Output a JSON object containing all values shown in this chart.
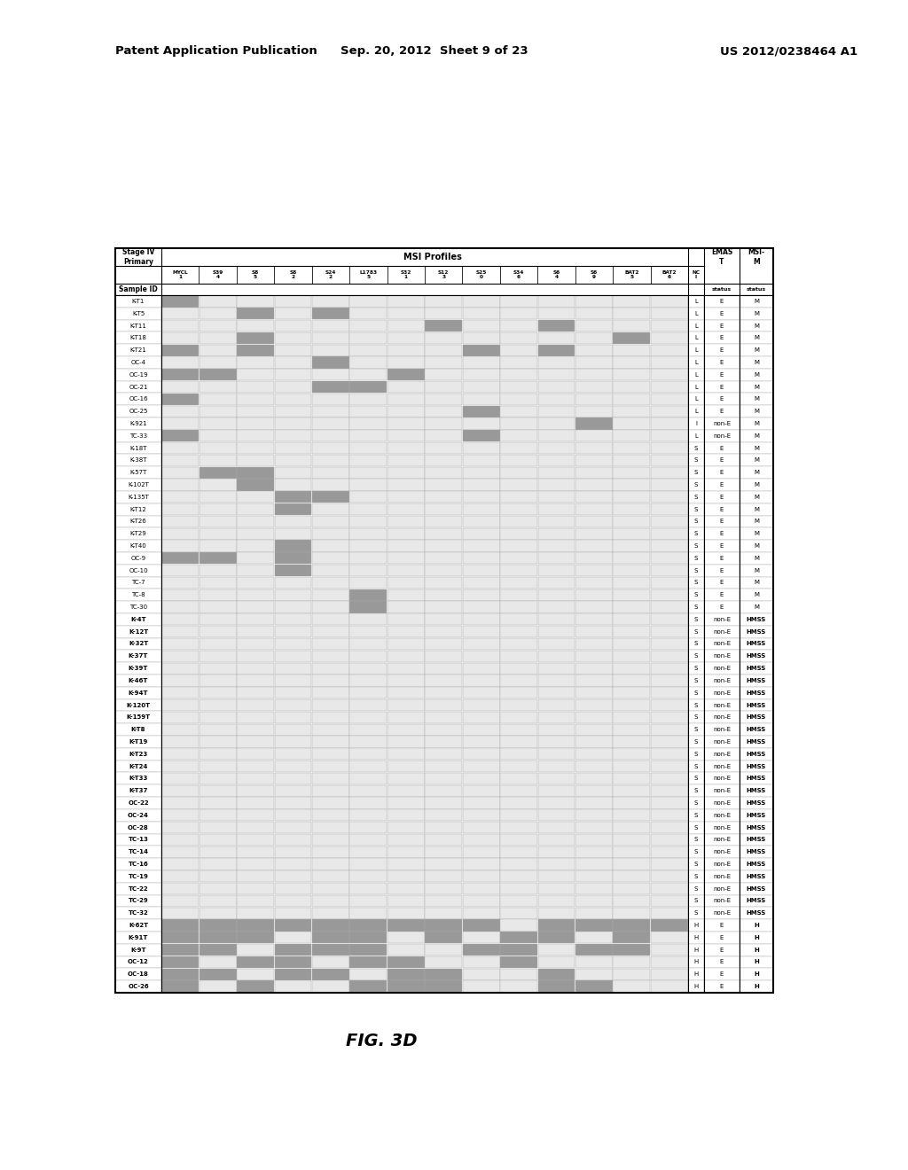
{
  "header_line1_left": "Patent Application Publication",
  "header_line1_mid": "Sep. 20, 2012  Sheet 9 of 23",
  "header_line1_right": "US 2012/0238464 A1",
  "figure_label": "FIG. 3D",
  "col_headers": [
    "MYCL\n1",
    "S39\n4",
    "S8\n5",
    "S8\n2",
    "S24\n2",
    "L1783\n5",
    "S32\n1",
    "S12\n3",
    "S25\n0",
    "S34\n6",
    "S6\n4",
    "S6\n9",
    "BAT2\n5",
    "BAT2\n6"
  ],
  "rows": [
    {
      "id": "K-T1",
      "vals": [
        1,
        0,
        0,
        0,
        0,
        0,
        0,
        0,
        0,
        0,
        0,
        0,
        0,
        0
      ],
      "nc": "L",
      "emast": "E",
      "msim": "M",
      "bold": false
    },
    {
      "id": "K-T5",
      "vals": [
        0,
        0,
        1,
        0,
        1,
        0,
        0,
        0,
        0,
        0,
        0,
        0,
        0,
        0
      ],
      "nc": "L",
      "emast": "E",
      "msim": "M",
      "bold": false
    },
    {
      "id": "K-T11",
      "vals": [
        0,
        0,
        0,
        0,
        0,
        0,
        0,
        1,
        0,
        0,
        1,
        0,
        0,
        0
      ],
      "nc": "L",
      "emast": "E",
      "msim": "M",
      "bold": false
    },
    {
      "id": "K-T18",
      "vals": [
        0,
        0,
        1,
        0,
        0,
        0,
        0,
        0,
        0,
        0,
        0,
        0,
        1,
        0
      ],
      "nc": "L",
      "emast": "E",
      "msim": "M",
      "bold": false
    },
    {
      "id": "K-T21",
      "vals": [
        1,
        0,
        1,
        0,
        0,
        0,
        0,
        0,
        1,
        0,
        1,
        0,
        0,
        0
      ],
      "nc": "L",
      "emast": "E",
      "msim": "M",
      "bold": false
    },
    {
      "id": "OC-4",
      "vals": [
        0,
        0,
        0,
        0,
        1,
        0,
        0,
        0,
        0,
        0,
        0,
        0,
        0,
        0
      ],
      "nc": "L",
      "emast": "E",
      "msim": "M",
      "bold": false
    },
    {
      "id": "OC-19",
      "vals": [
        1,
        1,
        0,
        0,
        0,
        0,
        1,
        0,
        0,
        0,
        0,
        0,
        0,
        0
      ],
      "nc": "L",
      "emast": "E",
      "msim": "M",
      "bold": false
    },
    {
      "id": "OC-21",
      "vals": [
        0,
        0,
        0,
        0,
        1,
        1,
        0,
        0,
        0,
        0,
        0,
        0,
        0,
        0
      ],
      "nc": "L",
      "emast": "E",
      "msim": "M",
      "bold": false
    },
    {
      "id": "OC-16",
      "vals": [
        1,
        0,
        0,
        0,
        0,
        0,
        0,
        0,
        0,
        0,
        0,
        0,
        0,
        0
      ],
      "nc": "L",
      "emast": "E",
      "msim": "M",
      "bold": false
    },
    {
      "id": "OC-25",
      "vals": [
        0,
        0,
        0,
        0,
        0,
        0,
        0,
        0,
        1,
        0,
        0,
        0,
        0,
        0
      ],
      "nc": "L",
      "emast": "E",
      "msim": "M",
      "bold": false
    },
    {
      "id": "K-921",
      "vals": [
        0,
        0,
        0,
        0,
        0,
        0,
        0,
        0,
        0,
        0,
        0,
        1,
        0,
        0
      ],
      "nc": "I",
      "emast": "non-E",
      "msim": "M",
      "bold": false
    },
    {
      "id": "TC-33",
      "vals": [
        1,
        0,
        0,
        0,
        0,
        0,
        0,
        0,
        1,
        0,
        0,
        0,
        0,
        0
      ],
      "nc": "L",
      "emast": "non-E",
      "msim": "M",
      "bold": false
    },
    {
      "id": "K-18T",
      "vals": [
        0,
        0,
        0,
        0,
        0,
        0,
        0,
        0,
        0,
        0,
        0,
        0,
        0,
        0
      ],
      "nc": "S",
      "emast": "E",
      "msim": "M",
      "bold": false
    },
    {
      "id": "K-38T",
      "vals": [
        0,
        0,
        0,
        0,
        0,
        0,
        0,
        0,
        0,
        0,
        0,
        0,
        0,
        0
      ],
      "nc": "S",
      "emast": "E",
      "msim": "M",
      "bold": false
    },
    {
      "id": "K-57T",
      "vals": [
        0,
        1,
        1,
        0,
        0,
        0,
        0,
        0,
        0,
        0,
        0,
        0,
        0,
        0
      ],
      "nc": "S",
      "emast": "E",
      "msim": "M",
      "bold": false
    },
    {
      "id": "K-102T",
      "vals": [
        0,
        0,
        1,
        0,
        0,
        0,
        0,
        0,
        0,
        0,
        0,
        0,
        0,
        0
      ],
      "nc": "S",
      "emast": "E",
      "msim": "M",
      "bold": false
    },
    {
      "id": "K-135T",
      "vals": [
        0,
        0,
        0,
        1,
        1,
        0,
        0,
        0,
        0,
        0,
        0,
        0,
        0,
        0
      ],
      "nc": "S",
      "emast": "E",
      "msim": "M",
      "bold": false
    },
    {
      "id": "K-T12",
      "vals": [
        0,
        0,
        0,
        1,
        0,
        0,
        0,
        0,
        0,
        0,
        0,
        0,
        0,
        0
      ],
      "nc": "S",
      "emast": "E",
      "msim": "M",
      "bold": false
    },
    {
      "id": "K-T26",
      "vals": [
        0,
        0,
        0,
        0,
        0,
        0,
        0,
        0,
        0,
        0,
        0,
        0,
        0,
        0
      ],
      "nc": "S",
      "emast": "E",
      "msim": "M",
      "bold": false
    },
    {
      "id": "K-T29",
      "vals": [
        0,
        0,
        0,
        0,
        0,
        0,
        0,
        0,
        0,
        0,
        0,
        0,
        0,
        0
      ],
      "nc": "S",
      "emast": "E",
      "msim": "M",
      "bold": false
    },
    {
      "id": "K-T40",
      "vals": [
        0,
        0,
        0,
        1,
        0,
        0,
        0,
        0,
        0,
        0,
        0,
        0,
        0,
        0
      ],
      "nc": "S",
      "emast": "E",
      "msim": "M",
      "bold": false
    },
    {
      "id": "OC-9",
      "vals": [
        1,
        1,
        0,
        1,
        0,
        0,
        0,
        0,
        0,
        0,
        0,
        0,
        0,
        0
      ],
      "nc": "S",
      "emast": "E",
      "msim": "M",
      "bold": false
    },
    {
      "id": "OC-10",
      "vals": [
        0,
        0,
        0,
        1,
        0,
        0,
        0,
        0,
        0,
        0,
        0,
        0,
        0,
        0
      ],
      "nc": "S",
      "emast": "E",
      "msim": "M",
      "bold": false
    },
    {
      "id": "TC-7",
      "vals": [
        0,
        0,
        0,
        0,
        0,
        0,
        0,
        0,
        0,
        0,
        0,
        0,
        0,
        0
      ],
      "nc": "S",
      "emast": "E",
      "msim": "M",
      "bold": false
    },
    {
      "id": "TC-8",
      "vals": [
        0,
        0,
        0,
        0,
        0,
        1,
        0,
        0,
        0,
        0,
        0,
        0,
        0,
        0
      ],
      "nc": "S",
      "emast": "E",
      "msim": "M",
      "bold": false
    },
    {
      "id": "TC-30",
      "vals": [
        0,
        0,
        0,
        0,
        0,
        1,
        0,
        0,
        0,
        0,
        0,
        0,
        0,
        0
      ],
      "nc": "S",
      "emast": "E",
      "msim": "M",
      "bold": false
    },
    {
      "id": "K-4T",
      "vals": [
        0,
        0,
        0,
        0,
        0,
        0,
        0,
        0,
        0,
        0,
        0,
        0,
        0,
        0
      ],
      "nc": "S",
      "emast": "non-E",
      "msim": "HMSS",
      "bold": true
    },
    {
      "id": "K-12T",
      "vals": [
        0,
        0,
        0,
        0,
        0,
        0,
        0,
        0,
        0,
        0,
        0,
        0,
        0,
        0
      ],
      "nc": "S",
      "emast": "non-E",
      "msim": "HMSS",
      "bold": true
    },
    {
      "id": "K-32T",
      "vals": [
        0,
        0,
        0,
        0,
        0,
        0,
        0,
        0,
        0,
        0,
        0,
        0,
        0,
        0
      ],
      "nc": "S",
      "emast": "non-E",
      "msim": "HMSS",
      "bold": true
    },
    {
      "id": "K-37T",
      "vals": [
        0,
        0,
        0,
        0,
        0,
        0,
        0,
        0,
        0,
        0,
        0,
        0,
        0,
        0
      ],
      "nc": "S",
      "emast": "non-E",
      "msim": "HMSS",
      "bold": true
    },
    {
      "id": "K-39T",
      "vals": [
        0,
        0,
        0,
        0,
        0,
        0,
        0,
        0,
        0,
        0,
        0,
        0,
        0,
        0
      ],
      "nc": "S",
      "emast": "non-E",
      "msim": "HMSS",
      "bold": true
    },
    {
      "id": "K-46T",
      "vals": [
        0,
        0,
        0,
        0,
        0,
        0,
        0,
        0,
        0,
        0,
        0,
        0,
        0,
        0
      ],
      "nc": "S",
      "emast": "non-E",
      "msim": "HMSS",
      "bold": true
    },
    {
      "id": "K-94T",
      "vals": [
        0,
        0,
        0,
        0,
        0,
        0,
        0,
        0,
        0,
        0,
        0,
        0,
        0,
        0
      ],
      "nc": "S",
      "emast": "non-E",
      "msim": "HMSS",
      "bold": true
    },
    {
      "id": "K-120T",
      "vals": [
        0,
        0,
        0,
        0,
        0,
        0,
        0,
        0,
        0,
        0,
        0,
        0,
        0,
        0
      ],
      "nc": "S",
      "emast": "non-E",
      "msim": "HMSS",
      "bold": true
    },
    {
      "id": "K-159T",
      "vals": [
        0,
        0,
        0,
        0,
        0,
        0,
        0,
        0,
        0,
        0,
        0,
        0,
        0,
        0
      ],
      "nc": "S",
      "emast": "non-E",
      "msim": "HMSS",
      "bold": true
    },
    {
      "id": "K-T8",
      "vals": [
        0,
        0,
        0,
        0,
        0,
        0,
        0,
        0,
        0,
        0,
        0,
        0,
        0,
        0
      ],
      "nc": "S",
      "emast": "non-E",
      "msim": "HMSS",
      "bold": true
    },
    {
      "id": "K-T19",
      "vals": [
        0,
        0,
        0,
        0,
        0,
        0,
        0,
        0,
        0,
        0,
        0,
        0,
        0,
        0
      ],
      "nc": "S",
      "emast": "non-E",
      "msim": "HMSS",
      "bold": true
    },
    {
      "id": "K-T23",
      "vals": [
        0,
        0,
        0,
        0,
        0,
        0,
        0,
        0,
        0,
        0,
        0,
        0,
        0,
        0
      ],
      "nc": "S",
      "emast": "non-E",
      "msim": "HMSS",
      "bold": true
    },
    {
      "id": "K-T24",
      "vals": [
        0,
        0,
        0,
        0,
        0,
        0,
        0,
        0,
        0,
        0,
        0,
        0,
        0,
        0
      ],
      "nc": "S",
      "emast": "non-E",
      "msim": "HMSS",
      "bold": true
    },
    {
      "id": "K-T33",
      "vals": [
        0,
        0,
        0,
        0,
        0,
        0,
        0,
        0,
        0,
        0,
        0,
        0,
        0,
        0
      ],
      "nc": "S",
      "emast": "non-E",
      "msim": "HMSS",
      "bold": true
    },
    {
      "id": "K-T37",
      "vals": [
        0,
        0,
        0,
        0,
        0,
        0,
        0,
        0,
        0,
        0,
        0,
        0,
        0,
        0
      ],
      "nc": "S",
      "emast": "non-E",
      "msim": "HMSS",
      "bold": true
    },
    {
      "id": "OC-22",
      "vals": [
        0,
        0,
        0,
        0,
        0,
        0,
        0,
        0,
        0,
        0,
        0,
        0,
        0,
        0
      ],
      "nc": "S",
      "emast": "non-E",
      "msim": "HMSS",
      "bold": true
    },
    {
      "id": "OC-24",
      "vals": [
        0,
        0,
        0,
        0,
        0,
        0,
        0,
        0,
        0,
        0,
        0,
        0,
        0,
        0
      ],
      "nc": "S",
      "emast": "non-E",
      "msim": "HMSS",
      "bold": true
    },
    {
      "id": "OC-28",
      "vals": [
        0,
        0,
        0,
        0,
        0,
        0,
        0,
        0,
        0,
        0,
        0,
        0,
        0,
        0
      ],
      "nc": "S",
      "emast": "non-E",
      "msim": "HMSS",
      "bold": true
    },
    {
      "id": "TC-13",
      "vals": [
        0,
        0,
        0,
        0,
        0,
        0,
        0,
        0,
        0,
        0,
        0,
        0,
        0,
        0
      ],
      "nc": "S",
      "emast": "non-E",
      "msim": "HMSS",
      "bold": true
    },
    {
      "id": "TC-14",
      "vals": [
        0,
        0,
        0,
        0,
        0,
        0,
        0,
        0,
        0,
        0,
        0,
        0,
        0,
        0
      ],
      "nc": "S",
      "emast": "non-E",
      "msim": "HMSS",
      "bold": true
    },
    {
      "id": "TC-16",
      "vals": [
        0,
        0,
        0,
        0,
        0,
        0,
        0,
        0,
        0,
        0,
        0,
        0,
        0,
        0
      ],
      "nc": "S",
      "emast": "non-E",
      "msim": "HMSS",
      "bold": true
    },
    {
      "id": "TC-19",
      "vals": [
        0,
        0,
        0,
        0,
        0,
        0,
        0,
        0,
        0,
        0,
        0,
        0,
        0,
        0
      ],
      "nc": "S",
      "emast": "non-E",
      "msim": "HMSS",
      "bold": true
    },
    {
      "id": "TC-22",
      "vals": [
        0,
        0,
        0,
        0,
        0,
        0,
        0,
        0,
        0,
        0,
        0,
        0,
        0,
        0
      ],
      "nc": "S",
      "emast": "non-E",
      "msim": "HMSS",
      "bold": true
    },
    {
      "id": "TC-29",
      "vals": [
        0,
        0,
        0,
        0,
        0,
        0,
        0,
        0,
        0,
        0,
        0,
        0,
        0,
        0
      ],
      "nc": "S",
      "emast": "non-E",
      "msim": "HMSS",
      "bold": true
    },
    {
      "id": "TC-32",
      "vals": [
        0,
        0,
        0,
        0,
        0,
        0,
        0,
        0,
        0,
        0,
        0,
        0,
        0,
        0
      ],
      "nc": "S",
      "emast": "non-E",
      "msim": "HMSS",
      "bold": true
    },
    {
      "id": "K-62T",
      "vals": [
        1,
        1,
        1,
        1,
        1,
        1,
        1,
        1,
        1,
        0,
        1,
        1,
        1,
        1
      ],
      "nc": "H",
      "emast": "E",
      "msim": "H",
      "bold": true
    },
    {
      "id": "K-91T",
      "vals": [
        1,
        1,
        1,
        0,
        1,
        1,
        0,
        1,
        0,
        1,
        1,
        0,
        1,
        0
      ],
      "nc": "H",
      "emast": "E",
      "msim": "H",
      "bold": true
    },
    {
      "id": "K-9T",
      "vals": [
        1,
        1,
        0,
        1,
        1,
        1,
        0,
        0,
        1,
        1,
        0,
        1,
        1,
        0
      ],
      "nc": "H",
      "emast": "E",
      "msim": "H",
      "bold": true
    },
    {
      "id": "OC-12",
      "vals": [
        1,
        0,
        1,
        1,
        0,
        1,
        1,
        0,
        0,
        1,
        0,
        0,
        0,
        0
      ],
      "nc": "H",
      "emast": "E",
      "msim": "H",
      "bold": true
    },
    {
      "id": "OC-18",
      "vals": [
        1,
        1,
        0,
        1,
        1,
        0,
        1,
        1,
        0,
        0,
        1,
        0,
        0,
        0
      ],
      "nc": "H",
      "emast": "E",
      "msim": "H",
      "bold": true
    },
    {
      "id": "OC-26",
      "vals": [
        1,
        0,
        1,
        0,
        0,
        1,
        1,
        1,
        0,
        0,
        1,
        1,
        0,
        0
      ],
      "nc": "H",
      "emast": "E",
      "msim": "H",
      "bold": true
    }
  ],
  "fill_color": "#999999",
  "empty_color": "#e8e8e8",
  "background_color": "#ffffff"
}
